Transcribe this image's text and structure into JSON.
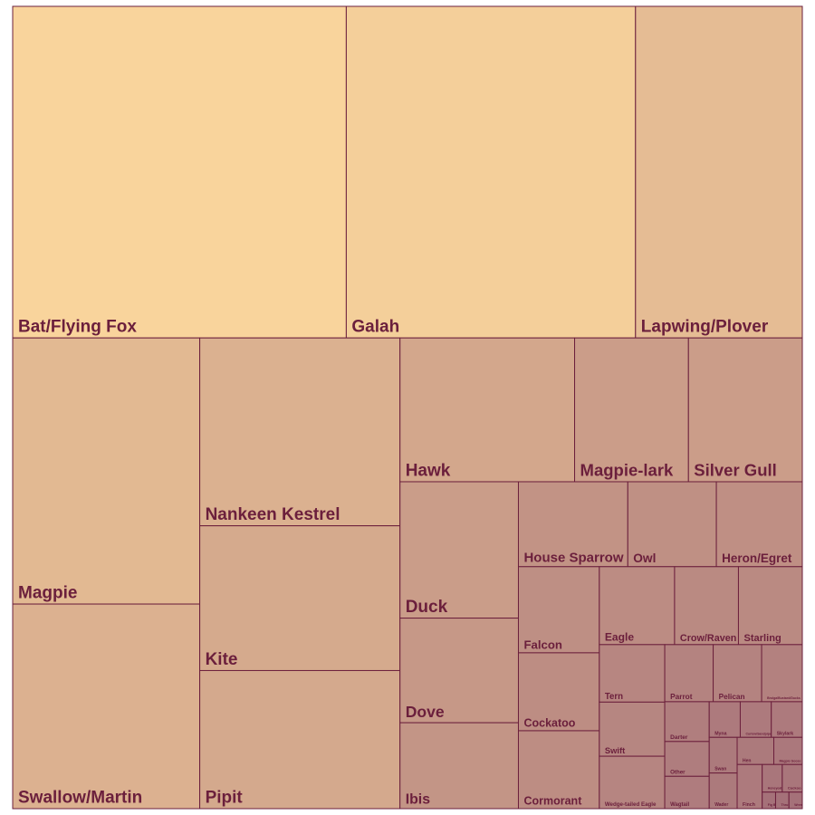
{
  "chart_data": {
    "type": "treemap",
    "title": "",
    "colors": {
      "scale_start": "#f9d49c",
      "scale_end": "#9a6475",
      "border": "#6b1f3c",
      "label": "#6b1f3c"
    },
    "items": [
      {
        "name": "Bat/Flying Fox",
        "value": 1000
      },
      {
        "name": "Galah",
        "value": 867
      },
      {
        "name": "Lapwing/Plover",
        "value": 500
      },
      {
        "name": "Magpie",
        "value": 450
      },
      {
        "name": "Swallow/Martin",
        "value": 346
      },
      {
        "name": "Nankeen Kestrel",
        "value": 340
      },
      {
        "name": "Kite",
        "value": 262
      },
      {
        "name": "Pipit",
        "value": 250
      },
      {
        "name": "Hawk",
        "value": 227
      },
      {
        "name": "Magpie-lark",
        "value": 148
      },
      {
        "name": "Silver Gull",
        "value": 148
      },
      {
        "name": "Duck",
        "value": 146
      },
      {
        "name": "Dove",
        "value": 112
      },
      {
        "name": "Ibis",
        "value": 92
      },
      {
        "name": "House Sparrow",
        "value": 84
      },
      {
        "name": "Owl",
        "value": 68
      },
      {
        "name": "Heron/Egret",
        "value": 66
      },
      {
        "name": "Falcon",
        "value": 63
      },
      {
        "name": "Eagle",
        "value": 53
      },
      {
        "name": "Cockatoo",
        "value": 57
      },
      {
        "name": "Cormorant",
        "value": 57
      },
      {
        "name": "Crow/Raven",
        "value": 45
      },
      {
        "name": "Starling",
        "value": 45
      },
      {
        "name": "Tern",
        "value": 34
      },
      {
        "name": "Swift",
        "value": 32
      },
      {
        "name": "Wedge-tailed Eagle",
        "value": 31
      },
      {
        "name": "Parrot",
        "value": 25
      },
      {
        "name": "Pelican",
        "value": 25
      },
      {
        "name": "Brolga/Bustard/Ducks",
        "value": 21
      },
      {
        "name": "Darter",
        "value": 16
      },
      {
        "name": "Other",
        "value": 14
      },
      {
        "name": "Wagtail",
        "value": 13
      },
      {
        "name": "Myna",
        "value": 10
      },
      {
        "name": "Curlew/Sandpiper",
        "value": 10
      },
      {
        "name": "Skylark",
        "value": 10
      },
      {
        "name": "Swan",
        "value": 9
      },
      {
        "name": "Wader",
        "value": 9
      },
      {
        "name": "Hen",
        "value": 9
      },
      {
        "name": "Magpie Goose",
        "value": 7
      },
      {
        "name": "Finch",
        "value": 10
      },
      {
        "name": "Honeyeater/Chat",
        "value": 5
      },
      {
        "name": "Cuckoo",
        "value": 5
      },
      {
        "name": "Fig Bird",
        "value": 2
      },
      {
        "name": "Thrush",
        "value": 2
      },
      {
        "name": "Wren",
        "value": 2
      }
    ]
  }
}
